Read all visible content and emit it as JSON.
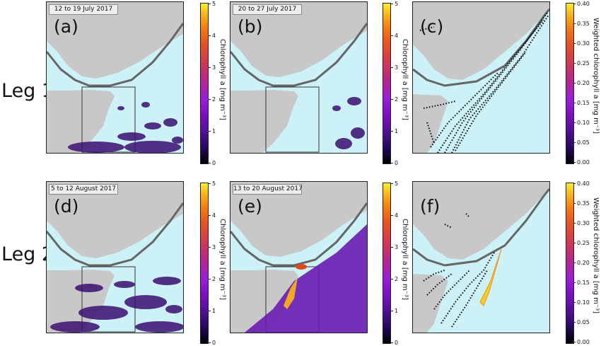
{
  "rows": [
    {
      "label": "Leg 1"
    },
    {
      "label": "Leg 2"
    }
  ],
  "panels": [
    {
      "letter": "(a)",
      "date": "12 to 19 July 2017",
      "kind": "chl"
    },
    {
      "letter": "(b)",
      "date": "20 to 27 July 2017",
      "kind": "chl"
    },
    {
      "letter": "(c)",
      "date": "",
      "kind": "weighted"
    },
    {
      "letter": "(d)",
      "date": "5 to 12 August 2017",
      "kind": "chl"
    },
    {
      "letter": "(e)",
      "date": "13 to 20 August 2017",
      "kind": "chl"
    },
    {
      "letter": "(f)",
      "date": "",
      "kind": "weighted"
    }
  ],
  "colorbars": {
    "chl": {
      "ticks": [
        "0",
        "1",
        "2",
        "3",
        "4",
        "5"
      ],
      "label": "Chlorophyll a [mg m⁻³]",
      "range": [
        0,
        5
      ]
    },
    "weighted": {
      "ticks": [
        "0.00",
        "0.05",
        "0.10",
        "0.15",
        "0.20",
        "0.25",
        "0.30",
        "0.35",
        "0.40"
      ],
      "label": "Weighted chlorophyll a [mg m⁻³]",
      "range": [
        0,
        0.4
      ]
    }
  },
  "colors": {
    "ocean": "#ccf2f7",
    "land": "#c8c8c8",
    "ship_track": "#666666",
    "float_points": "#000000",
    "colormap": "plasma"
  }
}
